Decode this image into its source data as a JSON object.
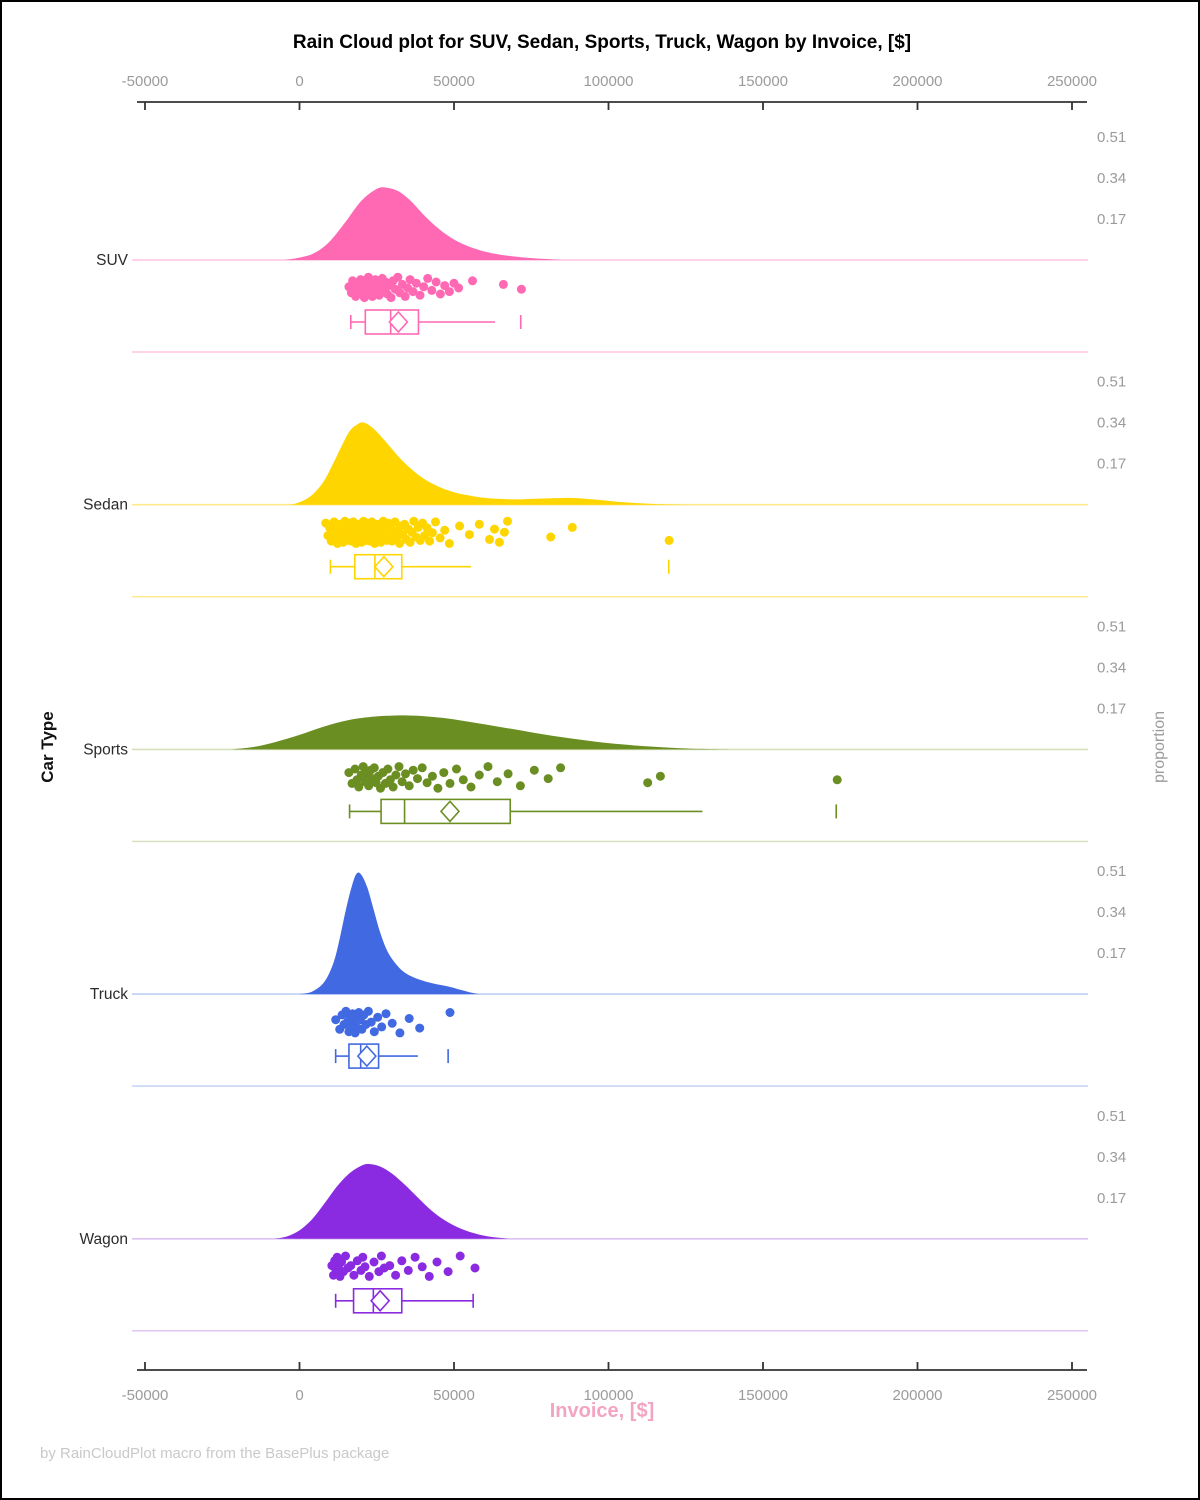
{
  "chart_data": {
    "type": "raincloud",
    "title": "Rain Cloud plot for SUV, Sedan, Sports, Truck, Wagon by Invoice, [$]",
    "footer": "by RainCloudPlot macro from the BasePlus package",
    "x_axis": {
      "label": "Invoice, [$]",
      "min": -50000,
      "max": 250000,
      "ticks": [
        -50000,
        0,
        50000,
        100000,
        150000,
        200000,
        250000
      ],
      "tick_color": "#9B9B9B",
      "axis_color": "#333333",
      "label_color": "#F2A4C2"
    },
    "y_axis_left": {
      "label": "Car Type"
    },
    "y_axis_right": {
      "label": "proportion",
      "ticks": [
        0.51,
        0.34,
        0.17
      ],
      "tick_color": "#9B9B9B"
    },
    "series": [
      {
        "name": "SUV",
        "color": "#FF69B4",
        "light_color": "#FFC4DF",
        "density": {
          "x": [
            -5000,
            0,
            5000,
            10000,
            15000,
            20000,
            25000,
            28000,
            32000,
            36000,
            40000,
            45000,
            50000,
            55000,
            60000,
            65000,
            70000,
            75000,
            80000,
            85000
          ],
          "proportion": [
            0,
            0.01,
            0.03,
            0.08,
            0.16,
            0.245,
            0.295,
            0.3,
            0.285,
            0.245,
            0.19,
            0.13,
            0.085,
            0.055,
            0.035,
            0.022,
            0.014,
            0.008,
            0.004,
            0
          ]
        },
        "rain": {
          "values": [
            16000,
            16800,
            17200,
            17800,
            18200,
            18700,
            19300,
            19800,
            20200,
            20700,
            21000,
            21400,
            21900,
            22300,
            22800,
            23200,
            23600,
            24100,
            24500,
            24900,
            25400,
            25800,
            26300,
            26800,
            27300,
            27900,
            28400,
            29000,
            29600,
            30300,
            31000,
            31800,
            32500,
            33300,
            34200,
            35000,
            35800,
            36700,
            37800,
            39000,
            40200,
            41500,
            42800,
            44200,
            45600,
            47000,
            48500,
            50000,
            51500,
            56000,
            66000,
            71800
          ],
          "jitter": [
            0.45,
            0.7,
            0.2,
            0.55,
            0.85,
            0.35,
            0.6,
            0.15,
            0.75,
            0.4,
            0.9,
            0.25,
            0.55,
            0.05,
            0.7,
            0.35,
            0.85,
            0.5,
            0.15,
            0.65,
            0.3,
            0.8,
            0.45,
            0.1,
            0.6,
            0.25,
            0.75,
            0.4,
            0.9,
            0.2,
            0.55,
            0.05,
            0.7,
            0.35,
            0.85,
            0.5,
            0.15,
            0.65,
            0.3,
            0.8,
            0.45,
            0.1,
            0.6,
            0.25,
            0.75,
            0.4,
            0.65,
            0.3,
            0.5,
            0.2,
            0.35,
            0.55
          ]
        },
        "box": {
          "low": 16600,
          "q1": 21300,
          "median": 29500,
          "mean": 32000,
          "q3": 38500,
          "high": 63300,
          "far": 71600
        }
      },
      {
        "name": "Sedan",
        "color": "#FFD500",
        "light_color": "#FFE98C",
        "density": {
          "x": [
            -3000,
            0,
            4000,
            8000,
            12000,
            16000,
            19000,
            21000,
            24000,
            28000,
            32000,
            36000,
            40000,
            45000,
            50000,
            55000,
            60000,
            65000,
            70000,
            75000,
            80000,
            88000,
            95000,
            105000,
            115000,
            125000
          ],
          "proportion": [
            0,
            0.01,
            0.04,
            0.1,
            0.2,
            0.3,
            0.335,
            0.34,
            0.315,
            0.26,
            0.2,
            0.15,
            0.11,
            0.075,
            0.052,
            0.038,
            0.028,
            0.024,
            0.022,
            0.024,
            0.026,
            0.028,
            0.022,
            0.01,
            0.003,
            0
          ]
        },
        "rain": {
          "values": [
            8500,
            9200,
            9800,
            10300,
            10800,
            11200,
            11600,
            12000,
            12300,
            12600,
            12900,
            13200,
            13500,
            13800,
            14100,
            14400,
            14700,
            15000,
            15300,
            15600,
            15900,
            16200,
            16500,
            16800,
            17100,
            17400,
            17700,
            18000,
            18300,
            18600,
            18900,
            19200,
            19500,
            19800,
            20100,
            20400,
            20700,
            21000,
            21300,
            21600,
            21900,
            22200,
            22500,
            22800,
            23100,
            23400,
            23700,
            24000,
            24300,
            24600,
            24900,
            25200,
            25500,
            25900,
            26300,
            26700,
            27100,
            27500,
            27900,
            28300,
            28700,
            29100,
            29500,
            29900,
            30400,
            30900,
            31400,
            31900,
            32400,
            32900,
            33400,
            34000,
            34600,
            35200,
            35800,
            36400,
            37000,
            37700,
            38400,
            39100,
            39800,
            40500,
            41300,
            42100,
            43000,
            44000,
            45500,
            47000,
            48500,
            51800,
            55000,
            58200,
            61500,
            63100,
            64700,
            66300,
            67300,
            81300,
            88300,
            119600
          ],
          "jitter": [
            0.1,
            0.62,
            0.3,
            0.85,
            0.5,
            0.05,
            0.72,
            0.4,
            0.95,
            0.22,
            0.58,
            0.15,
            0.78,
            0.35,
            0.9,
            0.48,
            0.02,
            0.68,
            0.28,
            0.82,
            0.1,
            0.62,
            0.3,
            0.85,
            0.5,
            0.05,
            0.72,
            0.4,
            0.95,
            0.22,
            0.58,
            0.15,
            0.78,
            0.35,
            0.9,
            0.48,
            0.02,
            0.68,
            0.28,
            0.82,
            0.1,
            0.62,
            0.3,
            0.85,
            0.5,
            0.05,
            0.72,
            0.4,
            0.95,
            0.22,
            0.58,
            0.15,
            0.78,
            0.35,
            0.9,
            0.48,
            0.02,
            0.68,
            0.28,
            0.82,
            0.1,
            0.62,
            0.3,
            0.85,
            0.5,
            0.05,
            0.72,
            0.4,
            0.95,
            0.22,
            0.58,
            0.15,
            0.78,
            0.35,
            0.9,
            0.48,
            0.02,
            0.68,
            0.28,
            0.82,
            0.1,
            0.62,
            0.3,
            0.85,
            0.5,
            0.05,
            0.72,
            0.4,
            0.95,
            0.22,
            0.58,
            0.15,
            0.78,
            0.35,
            0.9,
            0.48,
            0.02,
            0.68,
            0.28,
            0.82
          ]
        },
        "box": {
          "low": 10000,
          "q1": 17900,
          "median": 24400,
          "mean": 27300,
          "q3": 33100,
          "high": 55500,
          "far": 119500
        }
      },
      {
        "name": "Sports",
        "color": "#6B8E23",
        "light_color": "#D5DFBA",
        "density": {
          "x": [
            -22000,
            -15000,
            -8000,
            0,
            8000,
            16000,
            24000,
            30000,
            34000,
            40000,
            48000,
            56000,
            64000,
            72000,
            80000,
            88000,
            96000,
            104000,
            112000,
            120000,
            130000,
            140000
          ],
          "proportion": [
            0,
            0.01,
            0.03,
            0.06,
            0.095,
            0.122,
            0.136,
            0.14,
            0.141,
            0.138,
            0.128,
            0.112,
            0.095,
            0.078,
            0.06,
            0.045,
            0.032,
            0.021,
            0.013,
            0.007,
            0.002,
            0
          ]
        },
        "rain": {
          "values": [
            16000,
            17000,
            18000,
            18600,
            19200,
            20000,
            20600,
            21200,
            21800,
            22400,
            23000,
            23600,
            24200,
            24800,
            25500,
            26200,
            27000,
            27800,
            28600,
            29400,
            30300,
            31200,
            32200,
            33200,
            34300,
            35500,
            36800,
            38200,
            39700,
            41300,
            43000,
            44800,
            46700,
            48700,
            50800,
            53000,
            55500,
            58200,
            61000,
            64000,
            67500,
            71500,
            76000,
            80500,
            84500,
            112700,
            116800,
            174000
          ],
          "jitter": [
            0.3,
            0.75,
            0.15,
            0.6,
            0.9,
            0.4,
            0.05,
            0.68,
            0.35,
            0.85,
            0.2,
            0.55,
            0.1,
            0.72,
            0.45,
            0.95,
            0.3,
            0.75,
            0.15,
            0.6,
            0.9,
            0.4,
            0.05,
            0.68,
            0.35,
            0.85,
            0.2,
            0.55,
            0.1,
            0.72,
            0.45,
            0.95,
            0.3,
            0.75,
            0.15,
            0.6,
            0.9,
            0.4,
            0.05,
            0.68,
            0.35,
            0.85,
            0.2,
            0.55,
            0.1,
            0.72,
            0.45,
            0.6
          ]
        },
        "box": {
          "low": 16200,
          "q1": 26400,
          "median": 34000,
          "mean": 48700,
          "q3": 68200,
          "high": 130400,
          "far": 173700
        }
      },
      {
        "name": "Truck",
        "color": "#4169E1",
        "light_color": "#BDCFF2",
        "density": {
          "x": [
            0,
            4000,
            8000,
            11000,
            13000,
            15000,
            17000,
            18500,
            20000,
            22000,
            24000,
            26000,
            28000,
            30000,
            33000,
            36000,
            40000,
            44000,
            48000,
            52000,
            55000,
            58000
          ],
          "proportion": [
            0,
            0.01,
            0.05,
            0.13,
            0.23,
            0.35,
            0.45,
            0.5,
            0.495,
            0.44,
            0.35,
            0.26,
            0.19,
            0.145,
            0.1,
            0.075,
            0.055,
            0.042,
            0.032,
            0.018,
            0.008,
            0
          ]
        },
        "rain": {
          "values": [
            11700,
            13000,
            13800,
            14400,
            15000,
            15500,
            16000,
            16400,
            16800,
            17200,
            17600,
            18000,
            18400,
            18800,
            19200,
            19700,
            20200,
            20800,
            21500,
            22300,
            23200,
            24200,
            25300,
            26600,
            28000,
            30000,
            32500,
            35500,
            38900,
            48700
          ],
          "jitter": [
            0.4,
            0.8,
            0.2,
            0.6,
            0.05,
            0.5,
            0.9,
            0.3,
            0.7,
            0.15,
            0.55,
            0.95,
            0.35,
            0.75,
            0.1,
            0.4,
            0.8,
            0.2,
            0.6,
            0.05,
            0.5,
            0.9,
            0.3,
            0.7,
            0.15,
            0.55,
            0.95,
            0.35,
            0.75,
            0.1
          ]
        },
        "box": {
          "low": 11700,
          "q1": 16000,
          "median": 19800,
          "mean": 21800,
          "q3": 25600,
          "high": 38300,
          "far": 48100
        }
      },
      {
        "name": "Wagon",
        "color": "#8A2BE2",
        "light_color": "#DCC2F2",
        "density": {
          "x": [
            -8000,
            -4000,
            0,
            4000,
            8000,
            12000,
            16000,
            20000,
            22500,
            26000,
            30000,
            34000,
            38000,
            42000,
            46000,
            50000,
            54000,
            58000,
            62000,
            68000
          ],
          "proportion": [
            0,
            0.01,
            0.035,
            0.08,
            0.145,
            0.215,
            0.27,
            0.303,
            0.31,
            0.3,
            0.27,
            0.225,
            0.175,
            0.125,
            0.085,
            0.055,
            0.033,
            0.018,
            0.008,
            0
          ]
        },
        "rain": {
          "values": [
            10500,
            11000,
            11400,
            11800,
            12200,
            12600,
            13100,
            13600,
            14200,
            14900,
            15700,
            16600,
            17600,
            18700,
            19900,
            20500,
            21200,
            22600,
            24100,
            25700,
            26500,
            27400,
            29200,
            31100,
            33100,
            35200,
            37400,
            39700,
            42000,
            44500,
            48100,
            52000,
            56800
          ],
          "jitter": [
            0.45,
            0.85,
            0.25,
            0.65,
            0.1,
            0.5,
            0.9,
            0.3,
            0.7,
            0.05,
            0.55,
            0.45,
            0.85,
            0.25,
            0.65,
            0.1,
            0.5,
            0.9,
            0.3,
            0.7,
            0.05,
            0.55,
            0.45,
            0.85,
            0.25,
            0.65,
            0.1,
            0.5,
            0.9,
            0.3,
            0.7,
            0.05,
            0.55
          ]
        },
        "box": {
          "low": 11700,
          "q1": 17500,
          "median": 23900,
          "mean": 26100,
          "q3": 33100,
          "high": 56200,
          "far": null
        }
      }
    ]
  }
}
